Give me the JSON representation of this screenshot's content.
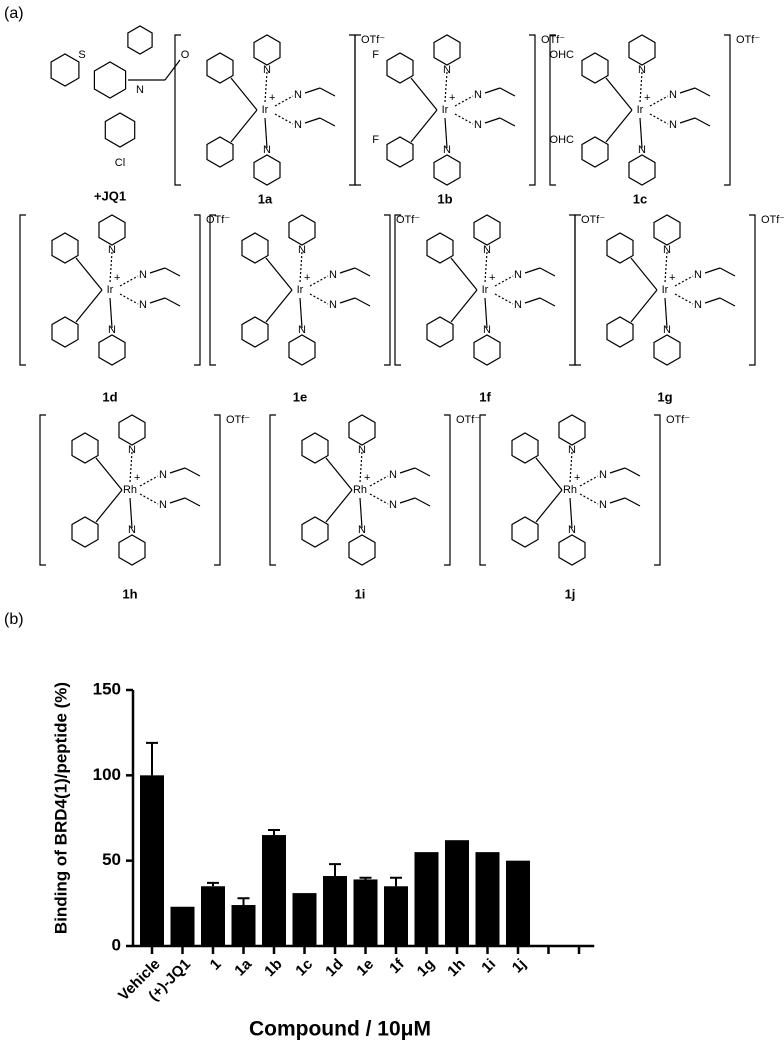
{
  "panel_a": {
    "label": "(a)",
    "counterion": "OTf⁻",
    "charge": "+",
    "nitrogen": "N",
    "jq1": {
      "name": "+JQ1",
      "atoms": [
        "S",
        "O",
        "Cl"
      ]
    },
    "complexes": [
      {
        "name": "1a",
        "metal": "Ir"
      },
      {
        "name": "1b",
        "metal": "Ir",
        "substituent": "F"
      },
      {
        "name": "1c",
        "metal": "Ir",
        "substituent": "OHC"
      },
      {
        "name": "1d",
        "metal": "Ir"
      },
      {
        "name": "1e",
        "metal": "Ir"
      },
      {
        "name": "1f",
        "metal": "Ir"
      },
      {
        "name": "1g",
        "metal": "Ir"
      },
      {
        "name": "1h",
        "metal": "Rh"
      },
      {
        "name": "1i",
        "metal": "Rh"
      },
      {
        "name": "1j",
        "metal": "Rh"
      }
    ]
  },
  "panel_b": {
    "label": "(b)"
  },
  "chart_data": {
    "type": "bar",
    "ylabel": "Binding of BRD4(1)/peptide (%)",
    "xlabel": "Compound / 10μM",
    "categories": [
      "Vehicle",
      "(+)-JQ1",
      "1",
      "1a",
      "1b",
      "1c",
      "1d",
      "1e",
      "1f",
      "1g",
      "1h",
      "1i",
      "1j",
      null,
      null
    ],
    "values": [
      100,
      23,
      35,
      24,
      65,
      31,
      41,
      39,
      35,
      55,
      62,
      55,
      50,
      null,
      null
    ],
    "errors": [
      19,
      null,
      2,
      4,
      3,
      null,
      7,
      1,
      5,
      null,
      null,
      null,
      null,
      null,
      null
    ],
    "color": "#000000",
    "ylim": [
      0,
      150
    ],
    "yticks": [
      0,
      50,
      100,
      150
    ]
  }
}
